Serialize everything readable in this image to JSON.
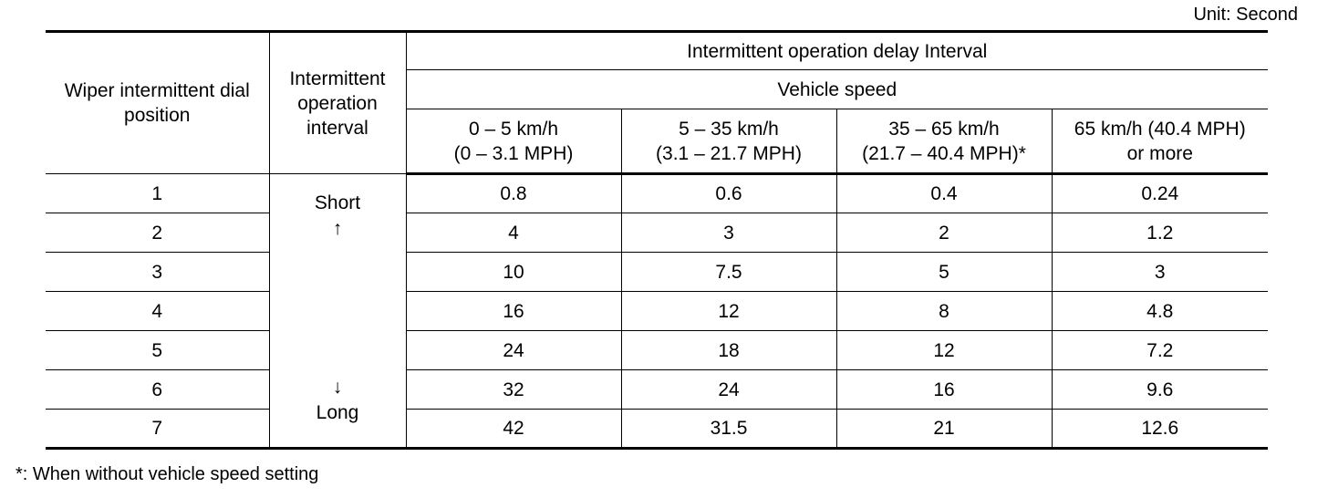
{
  "unit_note": "Unit: Second",
  "headers": {
    "dial_position": "Wiper intermittent dial position",
    "interval": "Intermittent operation interval",
    "delay_interval": "Intermittent operation delay Interval",
    "vehicle_speed": "Vehicle speed",
    "speed_ranges": [
      {
        "line1": "0 – 5 km/h",
        "line2": "(0 – 3.1 MPH)"
      },
      {
        "line1": "5 – 35 km/h",
        "line2": "(3.1 – 21.7 MPH)"
      },
      {
        "line1": "35 – 65 km/h",
        "line2": "(21.7 – 40.4 MPH)*"
      },
      {
        "line1": "65 km/h (40.4 MPH)",
        "line2": "or more"
      }
    ]
  },
  "interval_labels": {
    "short": "Short",
    "up_arrow": "↑",
    "down_arrow": "↓",
    "long": "Long"
  },
  "rows": [
    {
      "position": "1",
      "values": [
        "0.8",
        "0.6",
        "0.4",
        "0.24"
      ]
    },
    {
      "position": "2",
      "values": [
        "4",
        "3",
        "2",
        "1.2"
      ]
    },
    {
      "position": "3",
      "values": [
        "10",
        "7.5",
        "5",
        "3"
      ]
    },
    {
      "position": "4",
      "values": [
        "16",
        "12",
        "8",
        "4.8"
      ]
    },
    {
      "position": "5",
      "values": [
        "24",
        "18",
        "12",
        "7.2"
      ]
    },
    {
      "position": "6",
      "values": [
        "32",
        "24",
        "16",
        "9.6"
      ]
    },
    {
      "position": "7",
      "values": [
        "42",
        "31.5",
        "21",
        "12.6"
      ]
    }
  ],
  "footnote": "*: When without vehicle speed setting"
}
